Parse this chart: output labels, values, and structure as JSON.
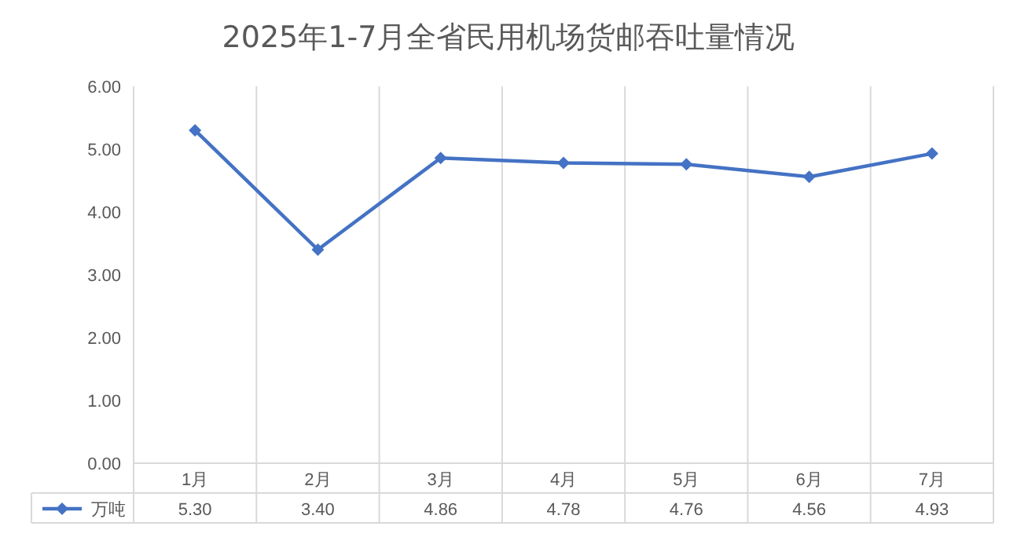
{
  "chart_data": {
    "type": "line",
    "title": "2025年1-7月全省民用机场货邮吞吐量情况",
    "categories": [
      "1月",
      "2月",
      "3月",
      "4月",
      "5月",
      "6月",
      "7月"
    ],
    "series": [
      {
        "name": "万吨",
        "color": "#4472c4",
        "values": [
          5.3,
          3.4,
          4.86,
          4.78,
          4.76,
          4.56,
          4.93
        ],
        "value_labels": [
          "5.30",
          "3.40",
          "4.86",
          "4.78",
          "4.76",
          "4.56",
          "4.93"
        ]
      }
    ],
    "ylim": [
      0,
      6
    ],
    "yticks": [
      {
        "value": 0,
        "label": "0.00"
      },
      {
        "value": 1,
        "label": "1.00"
      },
      {
        "value": 2,
        "label": "2.00"
      },
      {
        "value": 3,
        "label": "3.00"
      },
      {
        "value": 4,
        "label": "4.00"
      },
      {
        "value": 5,
        "label": "5.00"
      },
      {
        "value": 6,
        "label": "6.00"
      }
    ],
    "grid": "x",
    "legend": "bottom left",
    "marker": "diamond",
    "line_style": "solid"
  }
}
